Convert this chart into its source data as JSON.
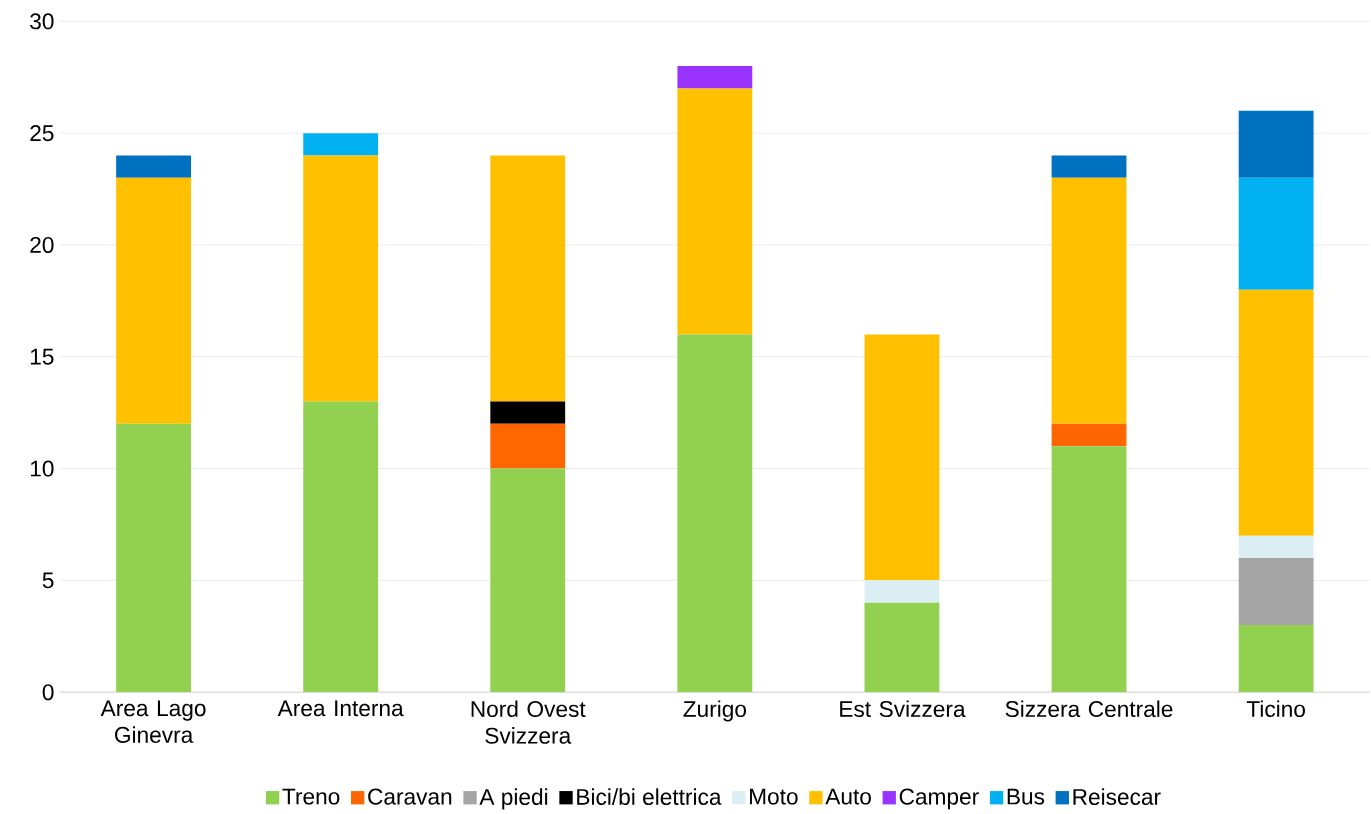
{
  "chart_data": {
    "type": "bar",
    "stacked": true,
    "categories": [
      "Area Lago Ginevra",
      "Area Interna",
      "Nord Ovest Svizzera",
      "Zurigo",
      "Est Svizzera",
      "Sizzera Centrale",
      "Ticino"
    ],
    "series": [
      {
        "name": "Treno",
        "color": "#92d050",
        "values": [
          12,
          13,
          10,
          16,
          4,
          11,
          3
        ]
      },
      {
        "name": "Caravan",
        "color": "#ff6600",
        "values": [
          0,
          0,
          2,
          0,
          0,
          1,
          0
        ]
      },
      {
        "name": "A piedi",
        "color": "#a5a5a5",
        "values": [
          0,
          0,
          0,
          0,
          0,
          0,
          3
        ]
      },
      {
        "name": "Bici/bi elettrica",
        "color": "#000000",
        "values": [
          0,
          0,
          1,
          0,
          0,
          0,
          0
        ]
      },
      {
        "name": "Moto",
        "color": "#daeef3",
        "values": [
          0,
          0,
          0,
          0,
          1,
          0,
          1
        ]
      },
      {
        "name": "Auto",
        "color": "#ffc000",
        "values": [
          11,
          11,
          11,
          11,
          11,
          11,
          11
        ]
      },
      {
        "name": "Camper",
        "color": "#9933ff",
        "values": [
          0,
          0,
          0,
          1,
          0,
          0,
          0
        ]
      },
      {
        "name": "Bus",
        "color": "#00b0f0",
        "values": [
          0,
          1,
          0,
          0,
          0,
          0,
          5
        ]
      },
      {
        "name": "Reisecar",
        "color": "#0070c0",
        "values": [
          1,
          0,
          0,
          0,
          0,
          1,
          3
        ]
      }
    ],
    "ylim": [
      0,
      30
    ],
    "yticks": [
      0,
      5,
      10,
      15,
      20,
      25,
      30
    ],
    "grid": "y",
    "legend": "bottom"
  }
}
